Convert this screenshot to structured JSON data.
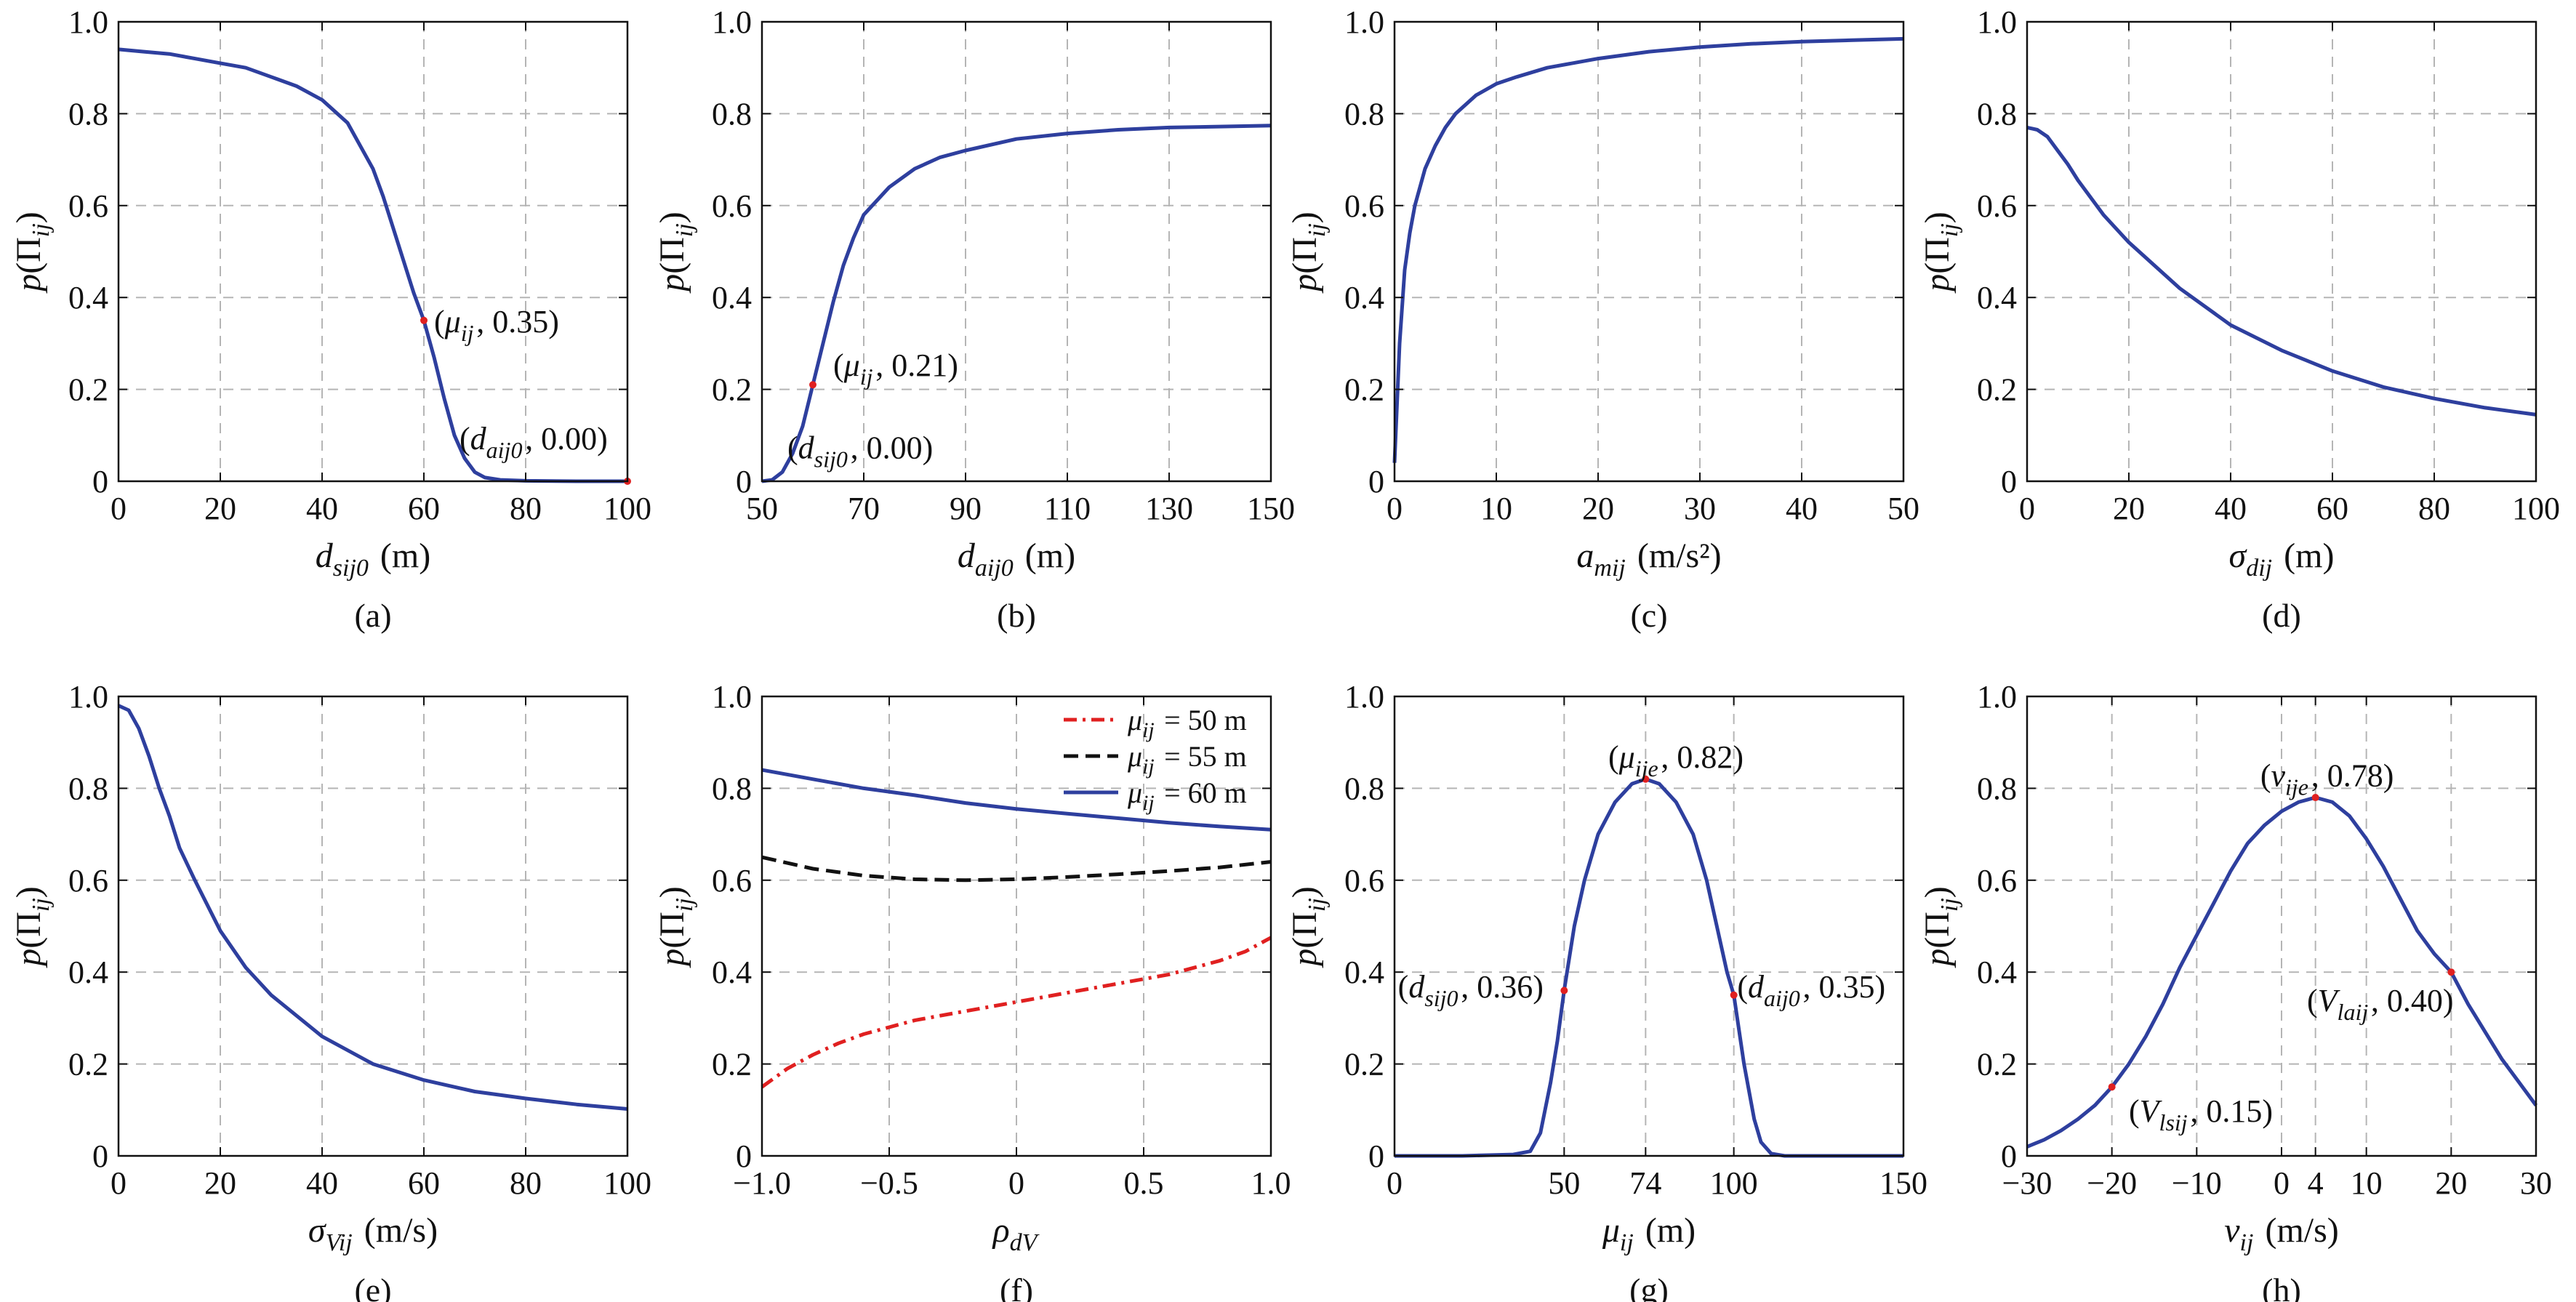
{
  "chart_data": [
    {
      "type": "line",
      "caption": "(a)",
      "xlabel": {
        "main": "d",
        "sub": "sij0",
        "tail": " (m)"
      },
      "ylabel": {
        "pre": "p(Π",
        "sub": "ij",
        "post": ")"
      },
      "xlim": [
        0,
        100
      ],
      "ylim": [
        0,
        1
      ],
      "xticks": [
        0,
        20,
        40,
        60,
        80,
        100
      ],
      "xtick_labels": [
        "0",
        "20",
        "40",
        "60",
        "80",
        "100"
      ],
      "yticks": [
        0,
        0.2,
        0.4,
        0.6,
        0.8,
        1.0
      ],
      "ytick_labels": [
        "0",
        "0.2",
        "0.4",
        "0.6",
        "0.8",
        "1.0"
      ],
      "grid": true,
      "series": [
        {
          "color": "#2e3f9e",
          "dash": "solid",
          "x": [
            0,
            5,
            10,
            15,
            20,
            25,
            30,
            35,
            40,
            45,
            50,
            52,
            54,
            56,
            58,
            60,
            62,
            64,
            66,
            68,
            70,
            72,
            75,
            80,
            90,
            100
          ],
          "y": [
            0.94,
            0.935,
            0.93,
            0.92,
            0.91,
            0.9,
            0.88,
            0.86,
            0.83,
            0.78,
            0.68,
            0.62,
            0.55,
            0.48,
            0.41,
            0.35,
            0.27,
            0.18,
            0.1,
            0.05,
            0.02,
            0.008,
            0.003,
            0.001,
            0.0,
            0.0
          ]
        }
      ],
      "points": [
        [
          60,
          0.35
        ],
        [
          100,
          0.0
        ]
      ],
      "annotations": [
        {
          "x": 62,
          "y": 0.35,
          "pre": "(",
          "it": "μ",
          "sub": "ij",
          "post": ", 0.35)"
        },
        {
          "x": 67,
          "y": 0.095,
          "pre": "(",
          "it": "d",
          "sub": "aij0",
          "post": ", 0.00)"
        }
      ]
    },
    {
      "type": "line",
      "caption": "(b)",
      "xlabel": {
        "main": "d",
        "sub": "aij0",
        "tail": " (m)"
      },
      "ylabel": {
        "pre": "p(Π",
        "sub": "ij",
        "post": ")"
      },
      "xlim": [
        50,
        150
      ],
      "ylim": [
        0,
        1
      ],
      "xticks": [
        50,
        70,
        90,
        110,
        130,
        150
      ],
      "xtick_labels": [
        "50",
        "70",
        "90",
        "110",
        "130",
        "150"
      ],
      "yticks": [
        0,
        0.2,
        0.4,
        0.6,
        0.8,
        1.0
      ],
      "ytick_labels": [
        "0",
        "0.2",
        "0.4",
        "0.6",
        "0.8",
        "1.0"
      ],
      "grid": true,
      "series": [
        {
          "color": "#2e3f9e",
          "dash": "solid",
          "x": [
            50,
            52,
            54,
            56,
            58,
            60,
            62,
            64,
            66,
            68,
            70,
            75,
            80,
            85,
            90,
            100,
            110,
            120,
            130,
            140,
            150
          ],
          "y": [
            0.0,
            0.003,
            0.02,
            0.06,
            0.12,
            0.21,
            0.3,
            0.39,
            0.47,
            0.53,
            0.58,
            0.64,
            0.68,
            0.705,
            0.72,
            0.745,
            0.757,
            0.765,
            0.77,
            0.772,
            0.774
          ]
        }
      ],
      "points": [
        [
          60,
          0.21
        ]
      ],
      "annotations": [
        {
          "x": 64,
          "y": 0.255,
          "pre": "(",
          "it": "μ",
          "sub": "ij",
          "post": ", 0.21)"
        },
        {
          "x": 55,
          "y": 0.075,
          "pre": "(",
          "it": "d",
          "sub": "sij0",
          "post": ", 0.00)"
        }
      ]
    },
    {
      "type": "line",
      "caption": "(c)",
      "xlabel": {
        "main": "a",
        "sub": "mij",
        "tail": " (m/s²)"
      },
      "ylabel": {
        "pre": "p(Π",
        "sub": "ij",
        "post": ")"
      },
      "xlim": [
        0,
        50
      ],
      "ylim": [
        0,
        1
      ],
      "xticks": [
        0,
        10,
        20,
        30,
        40,
        50
      ],
      "xtick_labels": [
        "0",
        "10",
        "20",
        "30",
        "40",
        "50"
      ],
      "yticks": [
        0,
        0.2,
        0.4,
        0.6,
        0.8,
        1.0
      ],
      "ytick_labels": [
        "0",
        "0.2",
        "0.4",
        "0.6",
        "0.8",
        "1.0"
      ],
      "grid": true,
      "series": [
        {
          "color": "#2e3f9e",
          "dash": "solid",
          "x": [
            0,
            0.5,
            1,
            1.5,
            2,
            3,
            4,
            5,
            6,
            8,
            10,
            12,
            15,
            20,
            25,
            30,
            35,
            40,
            45,
            50
          ],
          "y": [
            0.04,
            0.3,
            0.46,
            0.54,
            0.6,
            0.68,
            0.73,
            0.77,
            0.8,
            0.84,
            0.865,
            0.88,
            0.9,
            0.92,
            0.935,
            0.945,
            0.952,
            0.957,
            0.96,
            0.963
          ]
        }
      ],
      "points": [],
      "annotations": []
    },
    {
      "type": "line",
      "caption": "(d)",
      "xlabel": {
        "main": "σ",
        "sub": "dij",
        "tail": " (m)"
      },
      "ylabel": {
        "pre": "p(Π",
        "sub": "ij",
        "post": ")"
      },
      "xlim": [
        0,
        100
      ],
      "ylim": [
        0,
        1
      ],
      "xticks": [
        0,
        20,
        40,
        60,
        80,
        100
      ],
      "xtick_labels": [
        "0",
        "20",
        "40",
        "60",
        "80",
        "100"
      ],
      "yticks": [
        0,
        0.2,
        0.4,
        0.6,
        0.8,
        1.0
      ],
      "ytick_labels": [
        "0",
        "0.2",
        "0.4",
        "0.6",
        "0.8",
        "1.0"
      ],
      "grid": true,
      "series": [
        {
          "color": "#2e3f9e",
          "dash": "solid",
          "x": [
            0,
            2,
            4,
            6,
            8,
            10,
            15,
            20,
            25,
            30,
            40,
            50,
            60,
            70,
            80,
            90,
            100
          ],
          "y": [
            0.77,
            0.765,
            0.75,
            0.72,
            0.69,
            0.655,
            0.58,
            0.52,
            0.47,
            0.42,
            0.34,
            0.285,
            0.24,
            0.205,
            0.18,
            0.16,
            0.145
          ]
        }
      ],
      "points": [],
      "annotations": []
    },
    {
      "type": "line",
      "caption": "(e)",
      "xlabel": {
        "main": "σ",
        "sub": "Vij",
        "tail": " (m/s)"
      },
      "ylabel": {
        "pre": "p(Π",
        "sub": "ij",
        "post": ")"
      },
      "xlim": [
        0,
        100
      ],
      "ylim": [
        0,
        1
      ],
      "xticks": [
        0,
        20,
        40,
        60,
        80,
        100
      ],
      "xtick_labels": [
        "0",
        "20",
        "40",
        "60",
        "80",
        "100"
      ],
      "yticks": [
        0,
        0.2,
        0.4,
        0.6,
        0.8,
        1.0
      ],
      "ytick_labels": [
        "0",
        "0.2",
        "0.4",
        "0.6",
        "0.8",
        "1.0"
      ],
      "grid": true,
      "series": [
        {
          "color": "#2e3f9e",
          "dash": "solid",
          "x": [
            0,
            2,
            4,
            6,
            8,
            10,
            12,
            15,
            20,
            25,
            30,
            40,
            50,
            60,
            70,
            80,
            90,
            100
          ],
          "y": [
            0.98,
            0.97,
            0.93,
            0.87,
            0.8,
            0.74,
            0.67,
            0.6,
            0.49,
            0.41,
            0.35,
            0.26,
            0.2,
            0.165,
            0.14,
            0.125,
            0.112,
            0.102
          ]
        }
      ],
      "points": [],
      "annotations": []
    },
    {
      "type": "line",
      "caption": "(f)",
      "xlabel": {
        "main": "ρ",
        "sub": "dV",
        "tail": ""
      },
      "ylabel": {
        "pre": "p(Π",
        "sub": "ij",
        "post": ")"
      },
      "xlim": [
        -1,
        1
      ],
      "ylim": [
        0,
        1
      ],
      "xticks": [
        -1,
        -0.5,
        0,
        0.5,
        1
      ],
      "xtick_labels": [
        "−1.0",
        "−0.5",
        "0",
        "0.5",
        "1.0"
      ],
      "yticks": [
        0,
        0.2,
        0.4,
        0.6,
        0.8,
        1.0
      ],
      "ytick_labels": [
        "0",
        "0.2",
        "0.4",
        "0.6",
        "0.8",
        "1.0"
      ],
      "grid": true,
      "legend": "top-right",
      "series": [
        {
          "name_pre": "μ",
          "name_sub": "ij",
          "name_post": " = 50 m",
          "color": "#e02020",
          "dash": "dashdot",
          "x": [
            -1,
            -0.9,
            -0.8,
            -0.7,
            -0.6,
            -0.5,
            -0.4,
            -0.3,
            -0.2,
            -0.1,
            0,
            0.1,
            0.2,
            0.3,
            0.4,
            0.5,
            0.6,
            0.7,
            0.8,
            0.9,
            1.0
          ],
          "y": [
            0.15,
            0.19,
            0.22,
            0.245,
            0.265,
            0.28,
            0.295,
            0.305,
            0.315,
            0.325,
            0.335,
            0.345,
            0.355,
            0.365,
            0.375,
            0.385,
            0.395,
            0.41,
            0.425,
            0.445,
            0.475
          ]
        },
        {
          "name_pre": "μ",
          "name_sub": "ij",
          "name_post": " = 55 m",
          "color": "#111111",
          "dash": "dash",
          "x": [
            -1,
            -0.8,
            -0.6,
            -0.4,
            -0.2,
            0,
            0.2,
            0.4,
            0.6,
            0.8,
            1.0
          ],
          "y": [
            0.65,
            0.625,
            0.61,
            0.602,
            0.6,
            0.602,
            0.607,
            0.613,
            0.62,
            0.628,
            0.64
          ]
        },
        {
          "name_pre": "μ",
          "name_sub": "ij",
          "name_post": " = 60 m",
          "color": "#2e3f9e",
          "dash": "solid",
          "x": [
            -1,
            -0.8,
            -0.6,
            -0.4,
            -0.2,
            0,
            0.2,
            0.4,
            0.6,
            0.8,
            1.0
          ],
          "y": [
            0.84,
            0.82,
            0.8,
            0.785,
            0.768,
            0.755,
            0.745,
            0.735,
            0.725,
            0.717,
            0.71
          ]
        }
      ],
      "points": [],
      "annotations": []
    },
    {
      "type": "line",
      "caption": "(g)",
      "xlabel": {
        "main": "μ",
        "sub": "ij",
        "tail": " (m)"
      },
      "ylabel": {
        "pre": "p(Π",
        "sub": "ij",
        "post": ")"
      },
      "xlim": [
        0,
        150
      ],
      "ylim": [
        0,
        1
      ],
      "xticks": [
        0,
        50,
        74,
        100,
        150
      ],
      "xtick_labels": [
        "0",
        "50",
        "74",
        "100",
        "150"
      ],
      "yticks": [
        0,
        0.2,
        0.4,
        0.6,
        0.8,
        1.0
      ],
      "ytick_labels": [
        "0",
        "0.2",
        "0.4",
        "0.6",
        "0.8",
        "1.0"
      ],
      "grid": true,
      "series": [
        {
          "color": "#2e3f9e",
          "dash": "solid",
          "x": [
            0,
            20,
            35,
            40,
            43,
            46,
            48,
            50,
            53,
            56,
            60,
            65,
            70,
            74,
            78,
            83,
            88,
            92,
            95,
            98,
            100,
            103,
            106,
            108,
            111,
            115,
            130,
            150
          ],
          "y": [
            0.0,
            0.0,
            0.003,
            0.01,
            0.05,
            0.16,
            0.25,
            0.36,
            0.5,
            0.6,
            0.7,
            0.77,
            0.81,
            0.82,
            0.81,
            0.77,
            0.7,
            0.6,
            0.5,
            0.4,
            0.35,
            0.2,
            0.08,
            0.03,
            0.005,
            0.0,
            0.0,
            0.0
          ]
        }
      ],
      "points": [
        [
          50,
          0.36
        ],
        [
          74,
          0.82
        ],
        [
          100,
          0.35
        ]
      ],
      "annotations": [
        {
          "x": 63,
          "y": 0.87,
          "pre": "(",
          "it": "μ",
          "sub": "ije",
          "post": ", 0.82)"
        },
        {
          "x": 1,
          "y": 0.37,
          "pre": "(",
          "it": "d",
          "sub": "sij0",
          "post": ", 0.36)"
        },
        {
          "x": 101,
          "y": 0.37,
          "pre": "(",
          "it": "d",
          "sub": "aij0",
          "post": ", 0.35)"
        }
      ]
    },
    {
      "type": "line",
      "caption": "(h)",
      "xlabel": {
        "main": "v",
        "sub": "ij",
        "tail": " (m/s)"
      },
      "ylabel": {
        "pre": "p(Π",
        "sub": "ij",
        "post": ")"
      },
      "xlim": [
        -30,
        30
      ],
      "ylim": [
        0,
        1
      ],
      "xticks": [
        -30,
        -20,
        -10,
        0,
        4,
        10,
        20,
        30
      ],
      "xtick_labels": [
        "−30",
        "−20",
        "−10",
        "0",
        "4",
        "10",
        "20",
        "30"
      ],
      "yticks": [
        0,
        0.2,
        0.4,
        0.6,
        0.8,
        1.0
      ],
      "ytick_labels": [
        "0",
        "0.2",
        "0.4",
        "0.6",
        "0.8",
        "1.0"
      ],
      "grid": true,
      "series": [
        {
          "color": "#2e3f9e",
          "dash": "solid",
          "x": [
            -30,
            -28,
            -26,
            -24,
            -22,
            -20,
            -18,
            -16,
            -14,
            -12,
            -10,
            -8,
            -6,
            -4,
            -2,
            0,
            2,
            4,
            6,
            8,
            10,
            12,
            14,
            16,
            18,
            20,
            22,
            24,
            26,
            28,
            30
          ],
          "y": [
            0.02,
            0.035,
            0.055,
            0.08,
            0.11,
            0.15,
            0.2,
            0.26,
            0.33,
            0.41,
            0.48,
            0.55,
            0.62,
            0.68,
            0.72,
            0.75,
            0.77,
            0.78,
            0.77,
            0.74,
            0.69,
            0.63,
            0.56,
            0.49,
            0.44,
            0.4,
            0.33,
            0.27,
            0.21,
            0.16,
            0.11
          ]
        }
      ],
      "points": [
        [
          -20,
          0.15
        ],
        [
          4,
          0.78
        ],
        [
          20,
          0.4
        ]
      ],
      "annotations": [
        {
          "x": -2.5,
          "y": 0.83,
          "pre": "(",
          "it": "v",
          "sub": "ije",
          "post": ", 0.78)"
        },
        {
          "x": -18,
          "y": 0.1,
          "pre": "(",
          "it": "V",
          "sub": "lsij",
          "post": ", 0.15)"
        },
        {
          "x": 3,
          "y": 0.34,
          "pre": "(",
          "it": "V",
          "sub": "laij",
          "post": ", 0.40)"
        }
      ]
    }
  ]
}
